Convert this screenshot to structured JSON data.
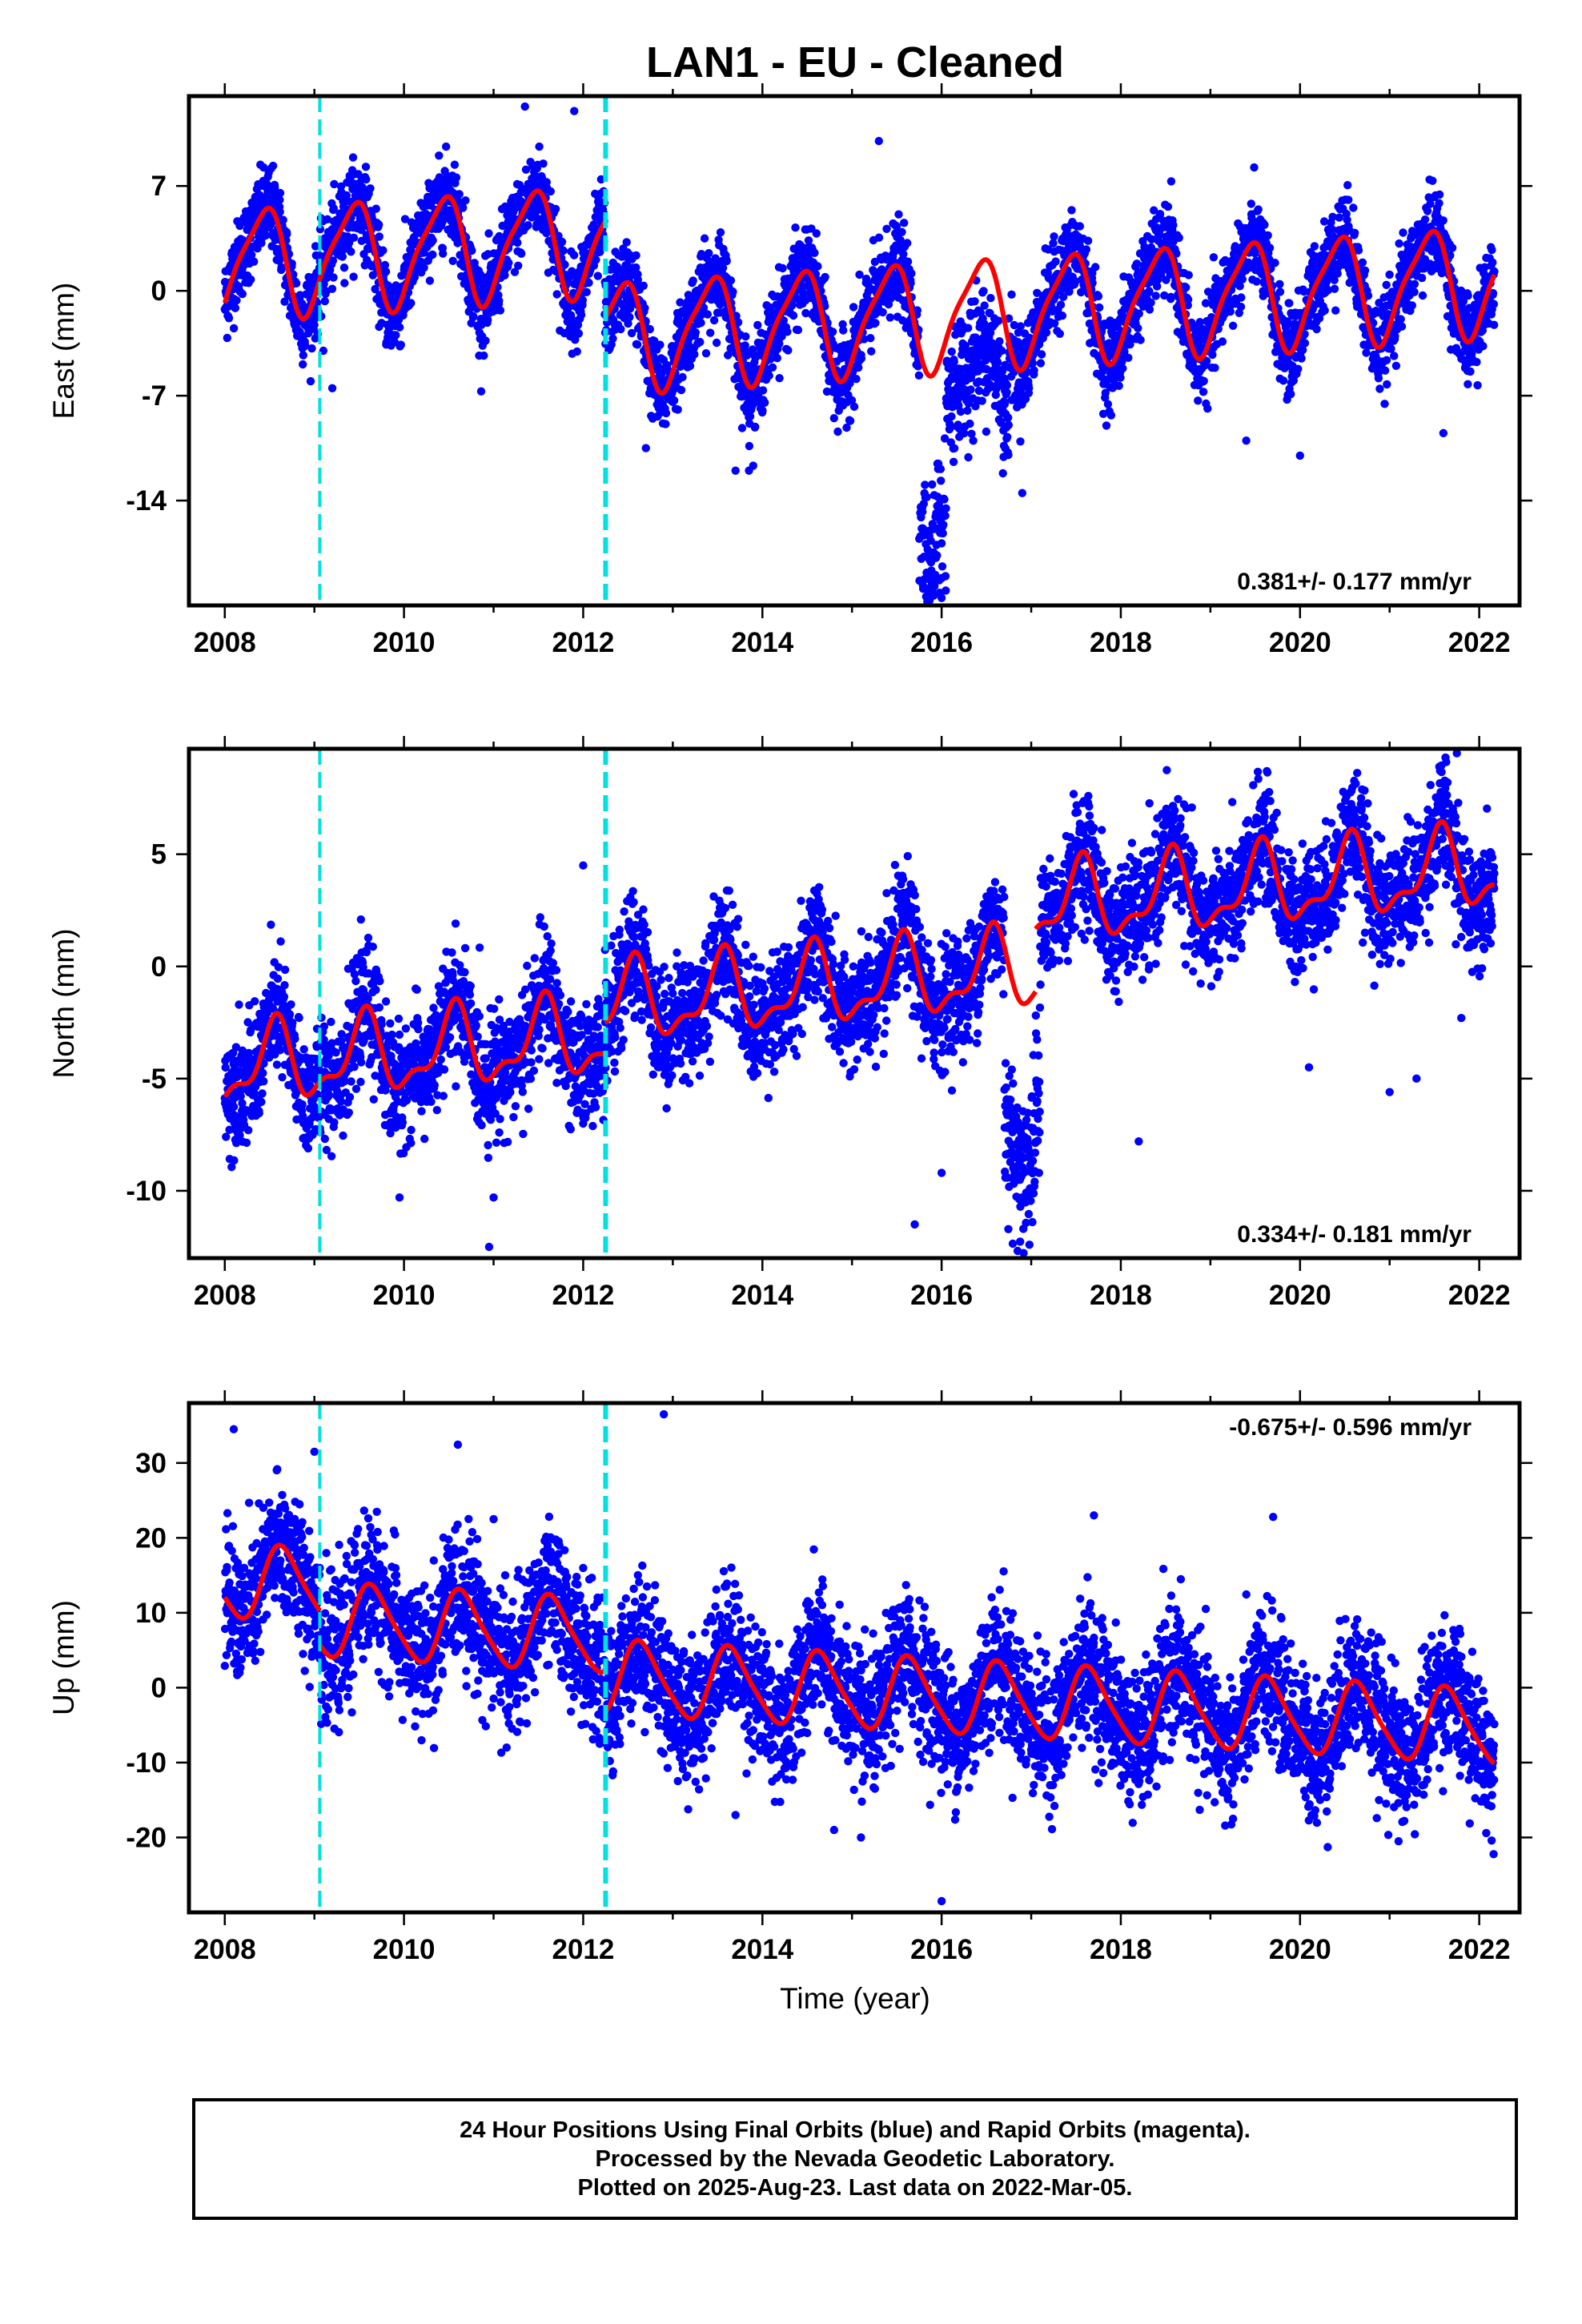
{
  "title": "LAN1  - EU - Cleaned",
  "xlabel": "Time (year)",
  "colors": {
    "points": "#0000ff",
    "model": "#ff0000",
    "offsets": "#00e0e0",
    "frame": "#000000"
  },
  "footer": [
    "24 Hour Positions Using Final Orbits (blue) and Rapid Orbits (magenta).",
    "Processed by the Nevada Geodetic Laboratory.",
    "Plotted on 2025-Aug-23. Last data on 2022-Mar-05."
  ],
  "chart_data": [
    {
      "type": "scatter",
      "component": "east",
      "ylabel": "East (mm)",
      "xlim": [
        2007.6,
        2022.45
      ],
      "ylim": [
        -21,
        13
      ],
      "xticks": [
        2008,
        2010,
        2012,
        2014,
        2016,
        2018,
        2020,
        2022
      ],
      "yticks": [
        7,
        0,
        -7,
        -14
      ],
      "ytick_labels": [
        "7",
        "0",
        "-7",
        "-14"
      ],
      "rate": "0.381+/- 0.177 mm/yr",
      "rate_position": "bottom-right",
      "offset_lines": [
        2009.06,
        2012.25
      ],
      "data_start": 2008.0,
      "data_end": 2022.17,
      "model": {
        "segments": [
          [
            2008.0,
            2012.24
          ],
          [
            2012.24,
            2022.17
          ]
        ],
        "mean_before_offset": 4.5,
        "mean_after_offset": -2.0,
        "rate_mm_per_yr": 0.381,
        "annual_amplitude": 3.5,
        "annual_peak_fraction": 0.42,
        "semiannual_amplitude": 0.8,
        "semiannual_phase": 1.0
      },
      "noise_sd": 1.4,
      "scatter_anomalies": [
        {
          "start": 2015.75,
          "end": 2016.05,
          "offset_mm": -12.5,
          "extra_sd": 2.5
        },
        {
          "start": 2016.05,
          "end": 2016.75,
          "offset_mm": -5.5,
          "extra_sd": 1.5
        }
      ],
      "outliers": [
        [
          2015.3,
          10
        ],
        [
          2011.35,
          12.3
        ],
        [
          2011.9,
          12
        ],
        [
          2009.1,
          -4
        ],
        [
          2009.2,
          -6.5
        ],
        [
          2013.7,
          -12
        ],
        [
          2013.85,
          -12
        ],
        [
          2016.0,
          -20.5
        ],
        [
          2016.9,
          -13.5
        ],
        [
          2021.6,
          -9.5
        ],
        [
          2020.0,
          -11
        ],
        [
          2019.4,
          -10
        ],
        [
          2014.8,
          -8.5
        ],
        [
          2012.7,
          -10.5
        ]
      ]
    },
    {
      "type": "scatter",
      "component": "north",
      "ylabel": "North (mm)",
      "xlim": [
        2007.6,
        2022.45
      ],
      "ylim": [
        -13,
        9.7
      ],
      "xticks": [
        2008,
        2010,
        2012,
        2014,
        2016,
        2018,
        2020,
        2022
      ],
      "yticks": [
        5,
        0,
        -5,
        -10
      ],
      "ytick_labels": [
        "5",
        "0",
        "-5",
        "-10"
      ],
      "rate": "0.334+/- 0.181 mm/yr",
      "rate_position": "bottom-right",
      "offset_lines": [
        2009.06,
        2012.25
      ],
      "data_start": 2008.0,
      "data_end": 2022.17,
      "model": {
        "segments": [
          [
            2008.0,
            2012.24
          ],
          [
            2012.24,
            2017.05
          ],
          [
            2017.05,
            2022.17
          ]
        ],
        "segment_means": [
          -2.2,
          -0.8,
          2.0
        ],
        "rate_mm_per_yr": 0.334,
        "annual_amplitude": 1.6,
        "annual_peak_fraction": 0.55,
        "semiannual_amplitude": 0.7,
        "semiannual_phase": 1.2
      },
      "noise_sd": 1.3,
      "scatter_anomalies": [
        {
          "start": 2016.7,
          "end": 2017.1,
          "offset_mm": -7.0,
          "extra_sd": 1.2
        }
      ],
      "outliers": [
        [
          2010.95,
          -12.5
        ],
        [
          2011.0,
          -10.3
        ],
        [
          2009.95,
          -10.3
        ],
        [
          2015.7,
          -11.5
        ],
        [
          2016.0,
          -9.2
        ],
        [
          2018.2,
          -7.8
        ],
        [
          2021.0,
          -5.6
        ],
        [
          2021.3,
          -5.0
        ],
        [
          2021.8,
          -2.3
        ],
        [
          2020.1,
          -4.5
        ],
        [
          2021.75,
          9.5
        ],
        [
          2012.0,
          4.5
        ]
      ]
    },
    {
      "type": "scatter",
      "component": "up",
      "ylabel": "Up (mm)",
      "xlim": [
        2007.6,
        2022.45
      ],
      "ylim": [
        -30,
        38
      ],
      "xticks": [
        2008,
        2010,
        2012,
        2014,
        2016,
        2018,
        2020,
        2022
      ],
      "yticks": [
        30,
        20,
        10,
        0,
        -10,
        -20
      ],
      "ytick_labels": [
        "30",
        "20",
        "10",
        "0",
        "-10",
        "-20"
      ],
      "rate": "-0.675+/- 0.596 mm/yr",
      "rate_position": "top-right",
      "offset_lines": [
        2009.06,
        2012.25
      ],
      "data_start": 2008.0,
      "data_end": 2022.17,
      "model": {
        "segments": [
          [
            2008.0,
            2009.06
          ],
          [
            2009.06,
            2012.24
          ],
          [
            2012.24,
            2022.17
          ]
        ],
        "segment_means": [
          9.5,
          5.0,
          -0.5
        ],
        "rate_mm_per_yr": -0.675,
        "annual_amplitude": 4.8,
        "annual_peak_fraction": 0.65,
        "semiannual_amplitude": 0.8,
        "semiannual_phase": 0.6
      },
      "noise_sd": 4.5,
      "scatter_anomalies": [],
      "outliers": [
        [
          2008.1,
          34.5
        ],
        [
          2009.0,
          31.5
        ],
        [
          2012.9,
          36.5
        ],
        [
          2016.0,
          -28.5
        ],
        [
          2017.7,
          23
        ],
        [
          2019.7,
          22.8
        ],
        [
          2011.0,
          22.5
        ],
        [
          2008.6,
          21
        ],
        [
          2014.8,
          -19
        ],
        [
          2015.1,
          -20
        ],
        [
          2021.1,
          -20.5
        ],
        [
          2013.7,
          -17
        ]
      ]
    }
  ]
}
